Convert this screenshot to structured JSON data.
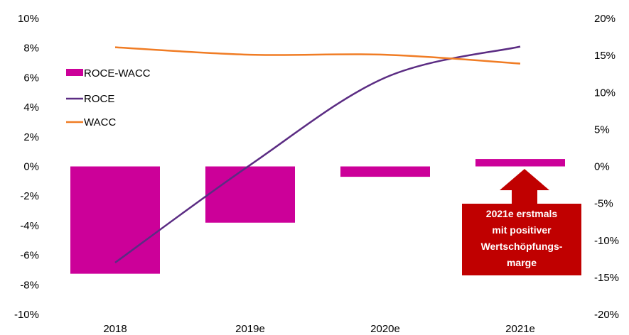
{
  "chart_data": {
    "type": "bar",
    "categories": [
      "2018",
      "2019e",
      "2020e",
      "2021e"
    ],
    "series": [
      {
        "name": "ROCE-WACC",
        "type": "bar",
        "axis": "left",
        "values": [
          -7.25,
          -3.8,
          -0.7,
          0.5
        ]
      },
      {
        "name": "ROCE",
        "type": "line",
        "axis": "left",
        "values": [
          -6.5,
          0.1,
          6.0,
          8.1
        ]
      },
      {
        "name": "WACC",
        "type": "line",
        "axis": "right",
        "values": [
          16.1,
          15.1,
          15.1,
          13.9
        ]
      }
    ],
    "left_axis": {
      "min": -10,
      "max": 10,
      "step": 2,
      "format": "percent"
    },
    "right_axis": {
      "min": -20,
      "max": 20,
      "step": 5,
      "format": "percent"
    },
    "legend_position": "top-left",
    "colors": {
      "ROCE-WACC": "#cc0099",
      "ROCE": "#5b2c83",
      "WACC": "#f07c24",
      "callout": "#c00000"
    },
    "annotation": {
      "lines": [
        "2021e erstmals",
        "mit positiver",
        "Wertschöpfungs-",
        "marge"
      ],
      "target_category": "2021e"
    }
  }
}
